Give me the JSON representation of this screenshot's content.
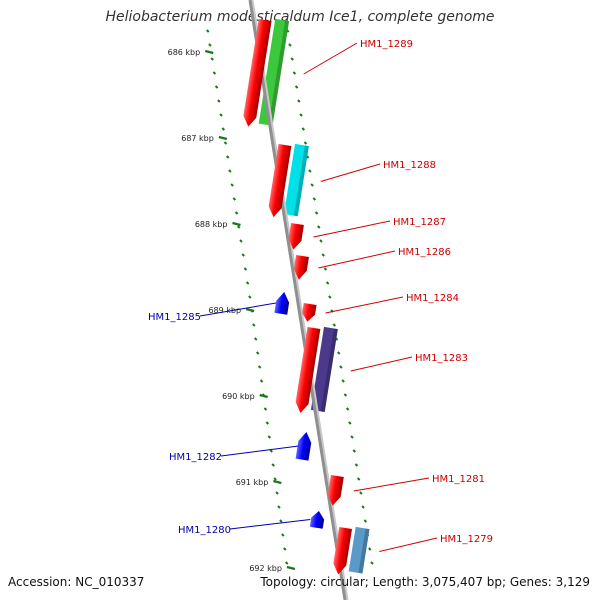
{
  "title": "Heliobacterium modesticaldum Ice1, complete genome",
  "footer": {
    "accession": "Accession: NC_010337",
    "topology": "Topology: circular; Length: 3,075,407 bp; Genes: 3,129"
  },
  "colors": {
    "forward": "#ff0000",
    "reverse": "#0000ff",
    "tick": "#1a7a1a",
    "backbone": "#8f8f8f",
    "forward_label": "#cc0000",
    "reverse_label": "#0000aa"
  },
  "ticks": [
    {
      "label": "686 kbp"
    },
    {
      "label": "687 kbp"
    },
    {
      "label": "688 kbp"
    },
    {
      "label": "689 kbp"
    },
    {
      "label": "690 kbp"
    },
    {
      "label": "691 kbp"
    },
    {
      "label": "692 kbp"
    }
  ],
  "genes": [
    {
      "label": "HM1_1289",
      "strand": "forward",
      "cog_color": "#3cc83c"
    },
    {
      "label": "HM1_1288",
      "strand": "forward",
      "cog_color": "#00e0e8"
    },
    {
      "label": "HM1_1287",
      "strand": "forward",
      "cog_color": ""
    },
    {
      "label": "HM1_1286",
      "strand": "forward",
      "cog_color": ""
    },
    {
      "label": "HM1_1285",
      "strand": "reverse",
      "cog_color": ""
    },
    {
      "label": "HM1_1284",
      "strand": "forward",
      "cog_color": ""
    },
    {
      "label": "HM1_1283",
      "strand": "forward",
      "cog_color": "#4b3a8c"
    },
    {
      "label": "HM1_1282",
      "strand": "reverse",
      "cog_color": ""
    },
    {
      "label": "HM1_1281",
      "strand": "forward",
      "cog_color": ""
    },
    {
      "label": "HM1_1280",
      "strand": "reverse",
      "cog_color": ""
    },
    {
      "label": "HM1_1279",
      "strand": "forward",
      "cog_color": "#5a9ac8"
    }
  ]
}
